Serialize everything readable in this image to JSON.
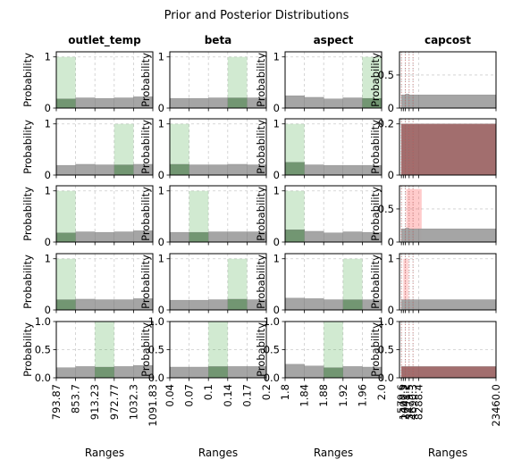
{
  "suptitle": "Prior and Posterior Distributions",
  "column_titles": [
    "outlet_temp",
    "beta",
    "aspect",
    "capcost"
  ],
  "ylabel": "Probability",
  "xlabel": "Ranges",
  "colors": {
    "prior_bar": "#a0a0a0",
    "posterior_green": "#2ca02c",
    "posterior_red": "#ff6b6b",
    "grid": "#cccccc"
  },
  "chart_data": {
    "type": "bar",
    "title": "Prior and Posterior Distributions",
    "grid": true,
    "columns": [
      {
        "name": "outlet_temp",
        "xlim": [
          793.87,
          1091.83
        ],
        "ticks": [
          793.87,
          853.7,
          913.23,
          972.77,
          1032.3,
          1091.83
        ],
        "tick_labels": [
          "793.87",
          "853.7",
          "913.23",
          "972.77",
          "1032.3",
          "1091.83"
        ]
      },
      {
        "name": "beta",
        "xlim": [
          0.04,
          0.2
        ],
        "ticks": [
          0.04,
          0.07,
          0.1,
          0.14,
          0.17,
          0.2
        ],
        "tick_labels": [
          "0.04",
          "0.07",
          "0.1",
          "0.14",
          "0.17",
          "0.2"
        ]
      },
      {
        "name": "aspect",
        "xlim": [
          1.8,
          2.0
        ],
        "ticks": [
          1.8,
          1.84,
          1.88,
          1.92,
          1.96,
          2.0
        ],
        "tick_labels": [
          "1.8",
          "1.84",
          "1.88",
          "1.92",
          "1.96",
          "2.0"
        ]
      },
      {
        "name": "capcost",
        "xlim": [
          0,
          23460.0
        ],
        "ticks": [
          579.6,
          1400.3,
          2041.2,
          3479.5,
          4690.3,
          8288.4,
          23460.0
        ],
        "tick_labels": [
          "579.6",
          "1400.3",
          "2041.2",
          "3479.5",
          "4690.3",
          "8288.4",
          "23460.0"
        ]
      }
    ],
    "rows": [
      {
        "ylim": [
          0,
          1.1
        ],
        "yticks": [
          0,
          1
        ],
        "panels": [
          {
            "prior": [
              0.18,
              0.2,
              0.19,
              0.2,
              0.22
            ],
            "posterior": {
              "bin": 0,
              "value": 1.0,
              "color": "green"
            }
          },
          {
            "prior": [
              0.19,
              0.19,
              0.2,
              0.2,
              0.2
            ],
            "posterior": {
              "bin": 3,
              "value": 1.0,
              "color": "green"
            }
          },
          {
            "prior": [
              0.24,
              0.21,
              0.18,
              0.2,
              0.19
            ],
            "posterior": {
              "bin": 4,
              "value": 1.0,
              "color": "green"
            }
          },
          {
            "prior": [
              0.2,
              0.21,
              0.2,
              0.2,
              0.2
            ],
            "posterior": {
              "bin": 0,
              "value": 0.0,
              "color": "red"
            },
            "ylim": [
              0,
              0.85
            ],
            "yticks": [
              0,
              0.5
            ]
          }
        ]
      },
      {
        "ylim": [
          0,
          1.1
        ],
        "yticks": [
          0,
          1
        ],
        "panels": [
          {
            "prior": [
              0.19,
              0.21,
              0.2,
              0.2,
              0.21
            ],
            "posterior": {
              "bin": 3,
              "value": 1.0,
              "color": "green"
            }
          },
          {
            "prior": [
              0.21,
              0.2,
              0.2,
              0.21,
              0.2
            ],
            "posterior": {
              "bin": 0,
              "value": 1.0,
              "color": "green"
            }
          },
          {
            "prior": [
              0.25,
              0.2,
              0.19,
              0.19,
              0.19
            ],
            "posterior": {
              "bin": 0,
              "value": 1.0,
              "color": "green"
            }
          },
          {
            "prior": [
              0.2,
              0.2,
              0.2,
              0.2,
              0.2
            ],
            "posterior_all": 0.2,
            "ylim": [
              0,
              0.22
            ],
            "yticks": [
              0,
              0.2
            ]
          }
        ]
      },
      {
        "ylim": [
          0,
          1.1
        ],
        "yticks": [
          0,
          1
        ],
        "panels": [
          {
            "prior": [
              0.18,
              0.2,
              0.19,
              0.2,
              0.22
            ],
            "posterior": {
              "bin": 0,
              "value": 1.0,
              "color": "green"
            }
          },
          {
            "prior": [
              0.19,
              0.19,
              0.2,
              0.2,
              0.2
            ],
            "posterior": {
              "bin": 1,
              "value": 1.0,
              "color": "green"
            }
          },
          {
            "prior": [
              0.24,
              0.21,
              0.18,
              0.2,
              0.19
            ],
            "posterior": {
              "bin": 0,
              "value": 1.0,
              "color": "green"
            }
          },
          {
            "prior": [
              0.2,
              0.21,
              0.2,
              0.2,
              0.2
            ],
            "posterior": {
              "bin": 1,
              "value": 0.8,
              "color": "red"
            },
            "ylim": [
              0,
              0.85
            ],
            "yticks": [
              0,
              0.5
            ]
          }
        ]
      },
      {
        "ylim": [
          0,
          1.1
        ],
        "yticks": [
          0,
          1
        ],
        "panels": [
          {
            "prior": [
              0.2,
              0.21,
              0.2,
              0.2,
              0.22
            ],
            "posterior": {
              "bin": 0,
              "value": 1.0,
              "color": "green"
            }
          },
          {
            "prior": [
              0.19,
              0.19,
              0.2,
              0.21,
              0.2
            ],
            "posterior": {
              "bin": 3,
              "value": 1.0,
              "color": "green"
            }
          },
          {
            "prior": [
              0.23,
              0.22,
              0.2,
              0.2,
              0.2
            ],
            "posterior": {
              "bin": 3,
              "value": 1.0,
              "color": "green"
            }
          },
          {
            "prior": [
              0.2,
              0.2,
              0.2,
              0.2,
              0.2
            ],
            "posterior": {
              "bin": 0,
              "value": 1.0,
              "color": "red"
            },
            "ylim": [
              0,
              1.1
            ],
            "yticks": [
              0,
              1
            ]
          }
        ]
      },
      {
        "ylim": [
          0,
          1.0
        ],
        "yticks": [
          0,
          0.5,
          1.0
        ],
        "panels": [
          {
            "prior": [
              0.18,
              0.2,
              0.19,
              0.2,
              0.22
            ],
            "posterior": {
              "bin": 2,
              "value": 1.0,
              "color": "green"
            }
          },
          {
            "prior": [
              0.19,
              0.19,
              0.2,
              0.2,
              0.2
            ],
            "posterior": {
              "bin": 2,
              "value": 1.0,
              "color": "green"
            }
          },
          {
            "prior": [
              0.24,
              0.21,
              0.18,
              0.2,
              0.19
            ],
            "posterior": {
              "bin": 2,
              "value": 1.0,
              "color": "green"
            }
          },
          {
            "prior": [
              0.2,
              0.2,
              0.2,
              0.2,
              0.2
            ],
            "posterior_all": 0.2
          }
        ]
      }
    ]
  }
}
